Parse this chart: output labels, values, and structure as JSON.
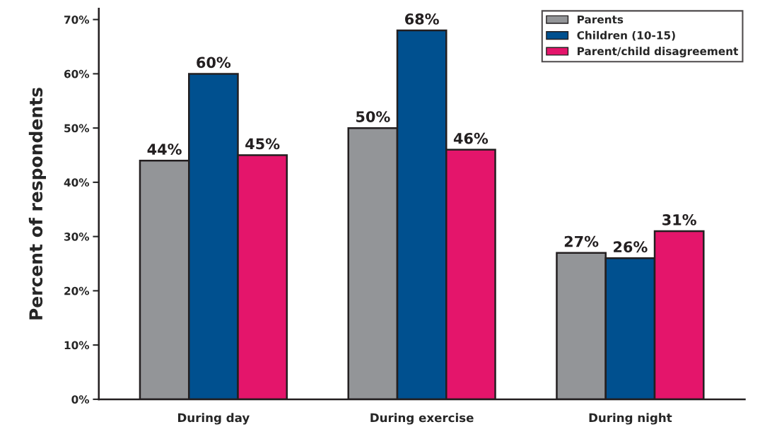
{
  "chart_data": {
    "type": "bar",
    "ylabel": "Percent of respondents",
    "categories": [
      "During day",
      "During exercise",
      "During night"
    ],
    "series": [
      {
        "name": "Parents",
        "color": "#939598",
        "values": [
          44,
          50,
          27
        ],
        "value_labels": [
          "44%",
          "50%",
          "27%"
        ]
      },
      {
        "name": "Children (10-15)",
        "color": "#00508f",
        "values": [
          60,
          68,
          26
        ],
        "value_labels": [
          "60%",
          "68%",
          "26%"
        ]
      },
      {
        "name": "Parent/child disagreement",
        "color": "#e4156b",
        "values": [
          45,
          46,
          31
        ],
        "value_labels": [
          "45%",
          "46%",
          "31%"
        ]
      }
    ],
    "ylim": [
      0,
      72
    ],
    "yticks": [
      {
        "value": 0,
        "label": "0%"
      },
      {
        "value": 10,
        "label": "10%"
      },
      {
        "value": 20,
        "label": "20%"
      },
      {
        "value": 30,
        "label": "30%"
      },
      {
        "value": 40,
        "label": "40%"
      },
      {
        "value": 50,
        "label": "50%"
      },
      {
        "value": 60,
        "label": "60%"
      },
      {
        "value": 70,
        "label": "70%"
      }
    ],
    "grid": false,
    "legend": "top right"
  }
}
